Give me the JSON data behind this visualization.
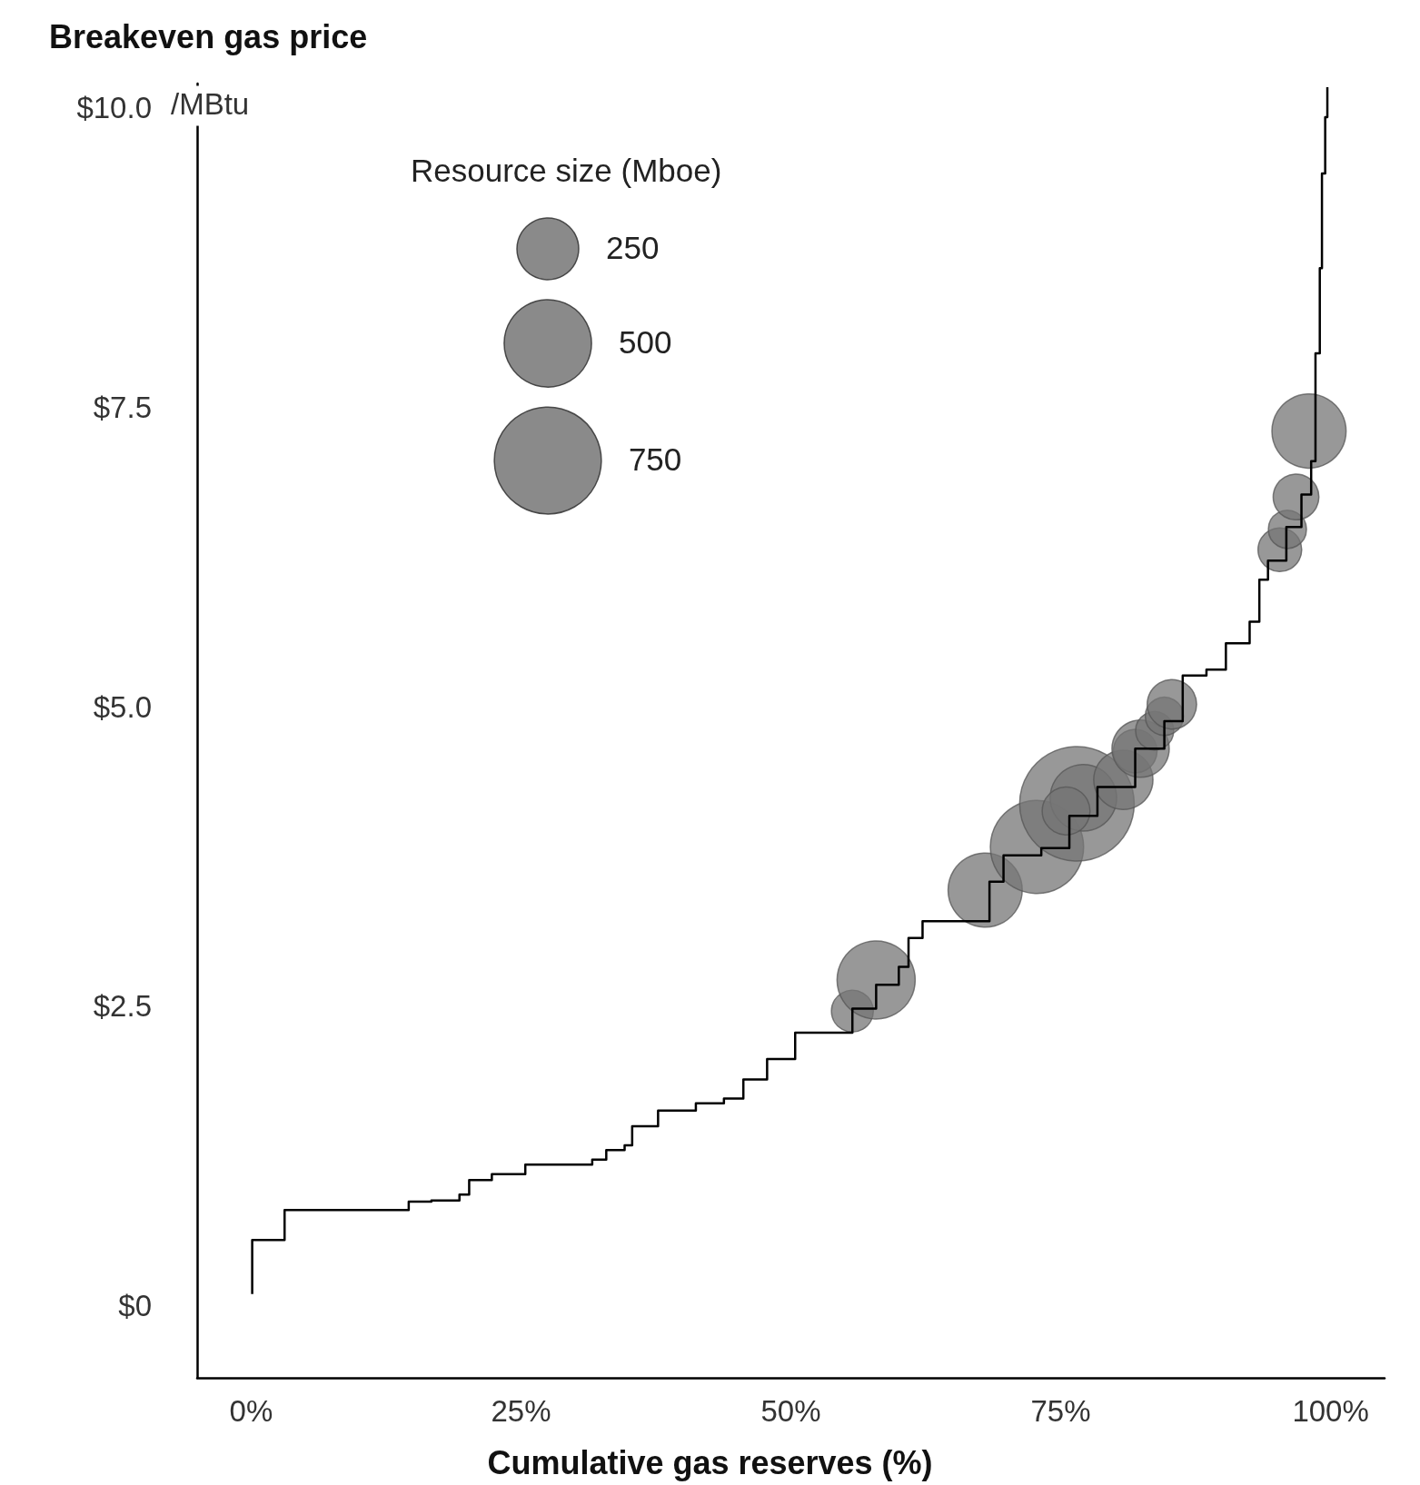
{
  "chart_data": {
    "type": "bubble",
    "ylabel": "Breakeven gas price",
    "xlabel": "Cumulative gas reserves (%)",
    "legend_title": "Resource size (Mboe)",
    "size_legend": [
      250,
      500,
      750
    ],
    "annotations": [
      "/MBtu"
    ],
    "xlim": [
      -5,
      105
    ],
    "ylim": [
      -0.6,
      10.2
    ],
    "xticks": [
      {
        "value": 0,
        "label": "0%"
      },
      {
        "value": 25,
        "label": "25%"
      },
      {
        "value": 50,
        "label": "50%"
      },
      {
        "value": 75,
        "label": "75%"
      },
      {
        "value": 100,
        "label": "100%"
      }
    ],
    "yticks": [
      {
        "value": 0,
        "label": "$0"
      },
      {
        "value": 2.5,
        "label": "$2.5"
      },
      {
        "value": 5,
        "label": "$5.0"
      },
      {
        "value": 7.5,
        "label": "$7.5"
      },
      {
        "value": 10,
        "label": "$10.0"
      }
    ],
    "series": [
      {
        "type": "step",
        "color": "#000000",
        "x": [
          0.1,
          0.1,
          2.5,
          3.1,
          14.5,
          14.6,
          16.7,
          19.3,
          20.2,
          22.3,
          25.4,
          31.6,
          32.9,
          34.6,
          35.3,
          37.7,
          41.2,
          43.8,
          45.6,
          47.8,
          50.4,
          53.7,
          55.7,
          57.9,
          60.0,
          60.9,
          62.2,
          66.6,
          68.4,
          69.7,
          73.2,
          75.8,
          78.4,
          81.9,
          84.6,
          86.3,
          88.5,
          90.3,
          92.5,
          93.4,
          94.2,
          95.9,
          97.3,
          98.2,
          98.6,
          99.0,
          99.2,
          99.5,
          99.7
        ],
        "values": [
          0.1,
          0.55,
          0.55,
          0.8,
          0.8,
          0.87,
          0.88,
          0.93,
          1.05,
          1.1,
          1.18,
          1.22,
          1.3,
          1.34,
          1.5,
          1.63,
          1.69,
          1.73,
          1.89,
          2.06,
          2.28,
          2.28,
          2.48,
          2.68,
          2.83,
          3.07,
          3.21,
          3.21,
          3.54,
          3.76,
          3.82,
          4.09,
          4.33,
          4.65,
          4.88,
          5.26,
          5.31,
          5.53,
          5.71,
          6.06,
          6.22,
          6.5,
          6.77,
          7.05,
          7.95,
          8.66,
          9.45,
          9.92,
          10.17
        ]
      },
      {
        "type": "bubble",
        "color": "#767676",
        "x": [
          55.7,
          57.9,
          68.0,
          72.8,
          76.5,
          77.1,
          75.5,
          80.8,
          81.9,
          82.4,
          83.7,
          84.6,
          85.3,
          95.3,
          96.0,
          96.8,
          98.0
        ],
        "values": [
          2.46,
          2.72,
          3.47,
          3.83,
          4.19,
          4.24,
          4.13,
          4.39,
          4.63,
          4.65,
          4.8,
          4.92,
          5.02,
          6.31,
          6.48,
          6.75,
          7.3
        ],
        "sizes": [
          115,
          400,
          360,
          570,
          860,
          290,
          150,
          230,
          125,
          215,
          95,
          95,
          160,
          125,
          95,
          137,
          360
        ]
      }
    ]
  }
}
